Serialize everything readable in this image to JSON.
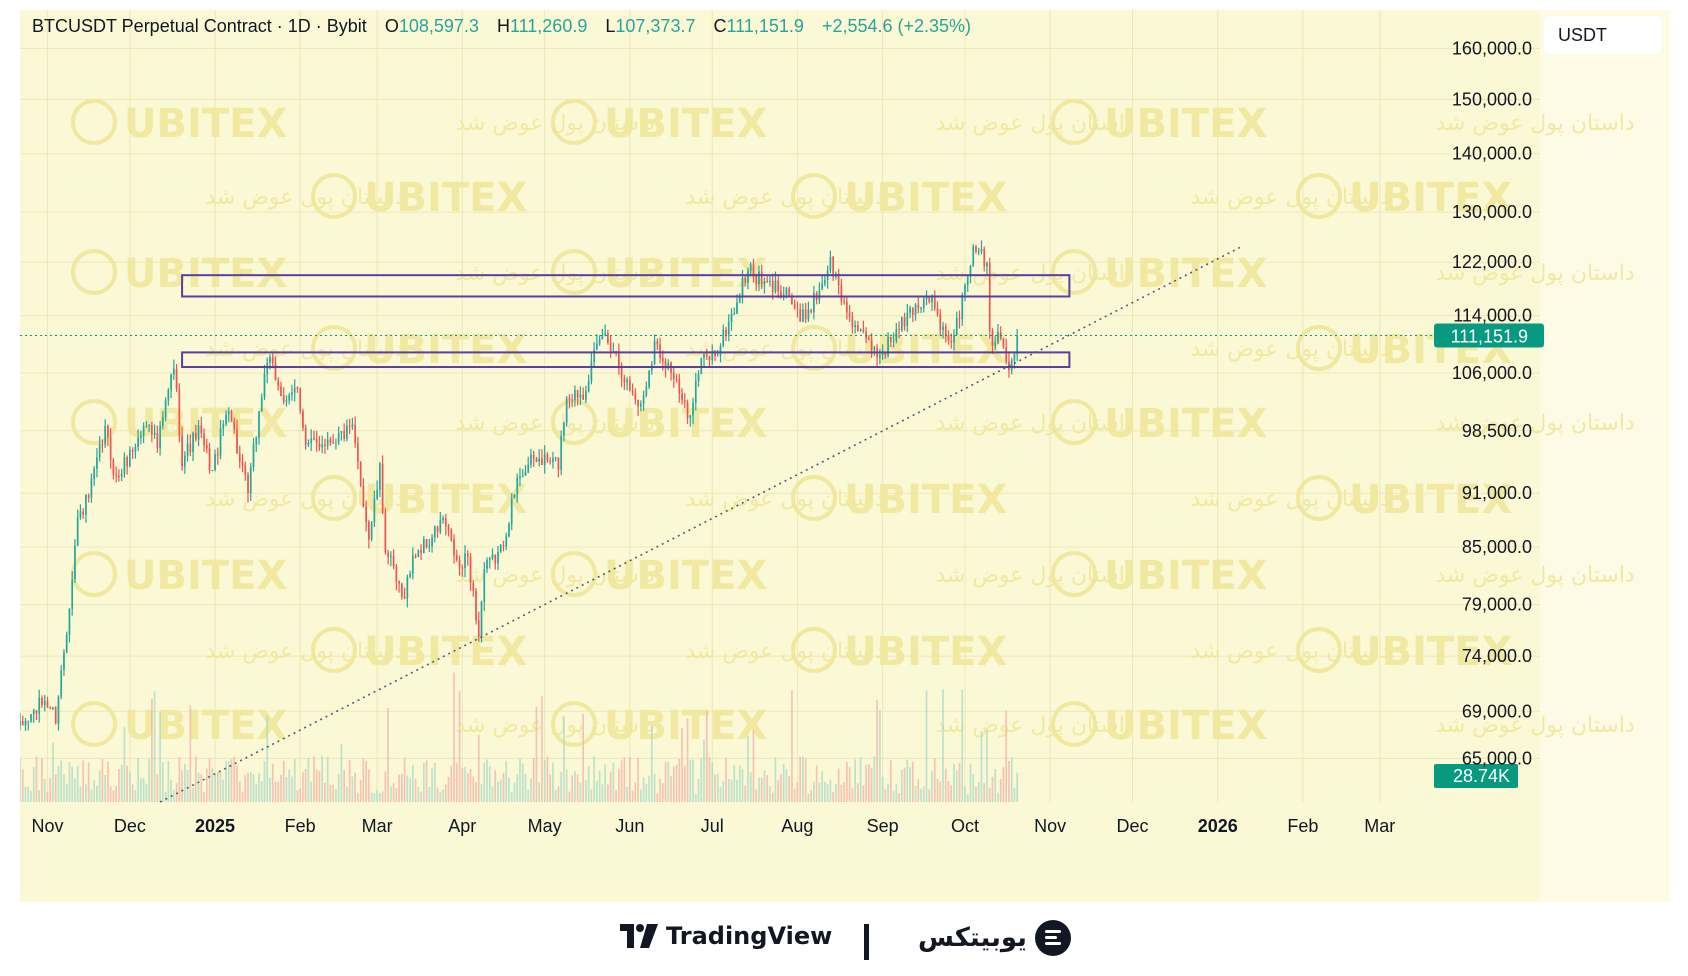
{
  "header": {
    "symbol": "BTCUSDT Perpetual Contract · 1D · Bybit",
    "o_label": "O",
    "o_value": "108,597.3",
    "h_label": "H",
    "h_value": "111,260.9",
    "l_label": "L",
    "l_value": "107,373.7",
    "c_label": "C",
    "c_value": "111,151.9",
    "change": "+2,554.6 (+2.35%)",
    "currency": "USDT"
  },
  "footer": {
    "tradingview": "TradingView",
    "brand": "یوبیتکس"
  },
  "watermark": {
    "brand": "UBITEX",
    "slogan": "داستان پول عوض شد"
  },
  "colors": {
    "up": "#26a69a",
    "down": "#ef5350",
    "band": "#5b3fa0",
    "bg": "#fbf8d6",
    "price_tag": "#089981"
  },
  "chart_data": {
    "type": "candlestick",
    "title": "BTCUSDT Perpetual Contract · 1D · Bybit",
    "x_ticks": [
      "Nov",
      "Dec",
      "2025",
      "Feb",
      "Mar",
      "Apr",
      "May",
      "Jun",
      "Jul",
      "Aug",
      "Sep",
      "Oct",
      "Nov",
      "Dec",
      "2026",
      "Feb",
      "Mar"
    ],
    "y_ticks": [
      "160,000.0",
      "150,000.0",
      "140,000.0",
      "130,000.0",
      "122,000.0",
      "114,000.0",
      "106,000.0",
      "98,500.0",
      "91,000.0",
      "85,000.0",
      "79,000.0",
      "74,000.0",
      "69,000.0",
      "65,000.0"
    ],
    "y_tick_values": [
      160000,
      150000,
      140000,
      130000,
      122000,
      114000,
      106000,
      98500,
      91000,
      85000,
      79000,
      74000,
      69000,
      65000
    ],
    "y_scale": "log",
    "ylim": [
      61500,
      168000
    ],
    "x_range": [
      "2024-10-22",
      "2026-03-20"
    ],
    "last_price": "111,151.9",
    "last_price_value": 111151.9,
    "volume_label": "28.74K",
    "price_path": [
      [
        "2024-10-22",
        67500
      ],
      [
        "2024-10-31",
        70000
      ],
      [
        "2024-11-04",
        68500
      ],
      [
        "2024-11-08",
        76500
      ],
      [
        "2024-11-12",
        88000
      ],
      [
        "2024-11-16",
        90500
      ],
      [
        "2024-11-22",
        98500
      ],
      [
        "2024-11-26",
        92500
      ],
      [
        "2024-12-04",
        97500
      ],
      [
        "2024-12-08",
        100000
      ],
      [
        "2024-12-11",
        96500
      ],
      [
        "2024-12-17",
        107000
      ],
      [
        "2024-12-20",
        95000
      ],
      [
        "2024-12-26",
        98500
      ],
      [
        "2024-12-31",
        93500
      ],
      [
        "2025-01-06",
        102000
      ],
      [
        "2025-01-10",
        94500
      ],
      [
        "2025-01-13",
        91000
      ],
      [
        "2025-01-20",
        108000
      ],
      [
        "2025-01-24",
        104500
      ],
      [
        "2025-01-27",
        101500
      ],
      [
        "2025-01-31",
        104500
      ],
      [
        "2025-02-03",
        96500
      ],
      [
        "2025-02-12",
        97500
      ],
      [
        "2025-02-20",
        98500
      ],
      [
        "2025-02-26",
        86000
      ],
      [
        "2025-03-02",
        93500
      ],
      [
        "2025-03-04",
        85000
      ],
      [
        "2025-03-10",
        79500
      ],
      [
        "2025-03-15",
        84500
      ],
      [
        "2025-03-20",
        85500
      ],
      [
        "2025-03-25",
        88000
      ],
      [
        "2025-03-31",
        82500
      ],
      [
        "2025-04-03",
        84000
      ],
      [
        "2025-04-07",
        76000
      ],
      [
        "2025-04-09",
        82500
      ],
      [
        "2025-04-15",
        84500
      ],
      [
        "2025-04-22",
        93500
      ],
      [
        "2025-04-28",
        95000
      ],
      [
        "2025-05-06",
        94500
      ],
      [
        "2025-05-09",
        103000
      ],
      [
        "2025-05-15",
        103500
      ],
      [
        "2025-05-22",
        111500
      ],
      [
        "2025-05-26",
        109500
      ],
      [
        "2025-05-31",
        104500
      ],
      [
        "2025-06-05",
        101500
      ],
      [
        "2025-06-10",
        110000
      ],
      [
        "2025-06-16",
        106500
      ],
      [
        "2025-06-22",
        100000
      ],
      [
        "2025-06-27",
        107500
      ],
      [
        "2025-07-03",
        109000
      ],
      [
        "2025-07-10",
        116000
      ],
      [
        "2025-07-14",
        121000
      ],
      [
        "2025-07-20",
        118500
      ],
      [
        "2025-07-28",
        118000
      ],
      [
        "2025-08-02",
        113000
      ],
      [
        "2025-08-08",
        117000
      ],
      [
        "2025-08-13",
        122000
      ],
      [
        "2025-08-18",
        115500
      ],
      [
        "2025-08-25",
        110500
      ],
      [
        "2025-08-31",
        108500
      ],
      [
        "2025-09-06",
        111500
      ],
      [
        "2025-09-12",
        115000
      ],
      [
        "2025-09-18",
        117000
      ],
      [
        "2025-09-25",
        109500
      ],
      [
        "2025-09-29",
        114000
      ],
      [
        "2025-10-03",
        122500
      ],
      [
        "2025-10-06",
        124500
      ],
      [
        "2025-10-09",
        121500
      ],
      [
        "2025-10-10",
        113000
      ],
      [
        "2025-10-11",
        110500
      ],
      [
        "2025-10-14",
        112000
      ],
      [
        "2025-10-16",
        108000
      ],
      [
        "2025-10-17",
        106500
      ],
      [
        "2025-10-19",
        108597.3
      ],
      [
        "2025-10-20",
        111151.9
      ]
    ],
    "annotations": {
      "resistance_zone": [
        116800,
        120000
      ],
      "support_zone": [
        106800,
        108800
      ],
      "zone_start": "2024-12-20",
      "zone_end": "2025-11-08",
      "trendline": [
        [
          "2024-12-12",
          61500
        ],
        [
          "2025-04-07",
          74800
        ],
        [
          "2025-10-10",
          100500
        ],
        [
          "2026-01-10",
          124500
        ]
      ]
    }
  }
}
